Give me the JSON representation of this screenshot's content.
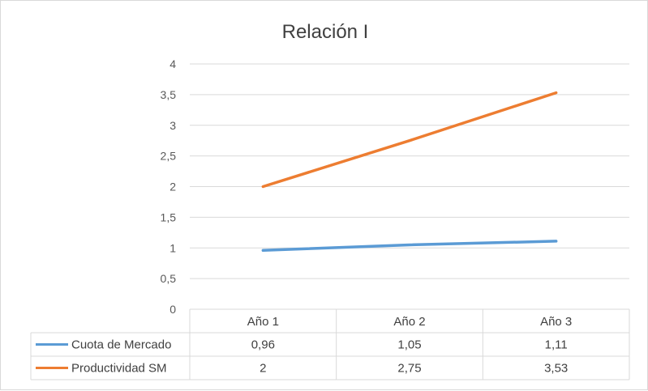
{
  "chart_data": {
    "type": "line",
    "title": "Relación I",
    "categories": [
      "Año 1",
      "Año 2",
      "Año 3"
    ],
    "series": [
      {
        "name": "Cuota de Mercado",
        "values": [
          0.96,
          1.05,
          1.11
        ],
        "labels": [
          "0,96",
          "1,05",
          "1,11"
        ],
        "color": "#5b9bd5"
      },
      {
        "name": "Productividad SM",
        "values": [
          2,
          2.75,
          3.53
        ],
        "labels": [
          "2",
          "2,75",
          "3,53"
        ],
        "color": "#ed7d31"
      }
    ],
    "ylim": [
      0,
      4
    ],
    "yticks": [
      0,
      0.5,
      1,
      1.5,
      2,
      2.5,
      3,
      3.5,
      4
    ],
    "ytick_labels": [
      "0",
      "0,5",
      "1",
      "1,5",
      "2",
      "2,5",
      "3",
      "3,5",
      "4"
    ],
    "grid": true,
    "legend": "data-table",
    "xlabel": "",
    "ylabel": ""
  }
}
